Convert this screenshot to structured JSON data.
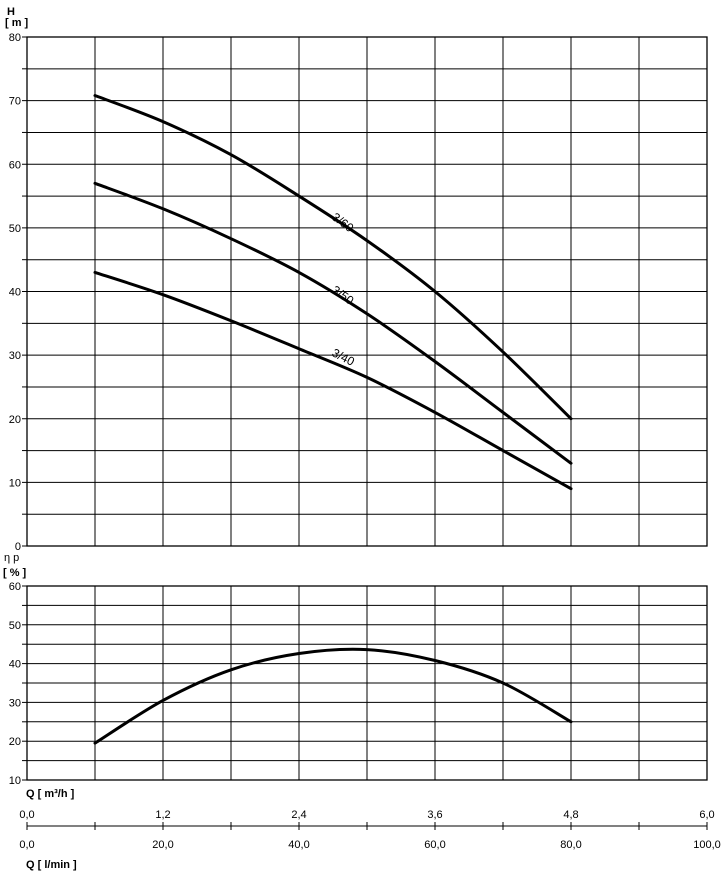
{
  "chart_data": [
    {
      "type": "line",
      "title": "",
      "ylabel": "H",
      "yunit": "[ m ]",
      "xlabel": "",
      "xlim": [
        0,
        6.0
      ],
      "ylim": [
        0,
        80
      ],
      "yticks": [
        "0",
        "10",
        "20",
        "30",
        "40",
        "50",
        "60",
        "70",
        "80"
      ],
      "grid": true,
      "series": [
        {
          "name": "3/60",
          "x": [
            0.6,
            1.2,
            1.8,
            2.4,
            3.0,
            3.6,
            4.2,
            4.8
          ],
          "y": [
            70.8,
            66.7,
            61.5,
            55.0,
            48.0,
            40.0,
            30.5,
            20.0
          ]
        },
        {
          "name": "3/50",
          "x": [
            0.6,
            1.2,
            1.8,
            2.4,
            3.0,
            3.6,
            4.2,
            4.8
          ],
          "y": [
            57.0,
            53.0,
            48.3,
            43.0,
            36.5,
            29.0,
            21.0,
            13.0
          ]
        },
        {
          "name": "3/40",
          "x": [
            0.6,
            1.2,
            1.8,
            2.4,
            3.0,
            3.6,
            4.2,
            4.8
          ],
          "y": [
            43.0,
            39.5,
            35.4,
            31.0,
            26.5,
            21.0,
            15.0,
            9.0
          ]
        }
      ]
    },
    {
      "type": "line",
      "title": "",
      "ylabel": "η p",
      "yunit": "[ % ]",
      "xlim": [
        0,
        6.0
      ],
      "ylim": [
        10,
        60
      ],
      "yticks": [
        "10",
        "20",
        "30",
        "40",
        "50",
        "60"
      ],
      "grid": true,
      "series": [
        {
          "x": [
            0.6,
            1.2,
            1.8,
            2.4,
            3.0,
            3.6,
            4.2,
            4.8
          ],
          "y": [
            19.5,
            30.5,
            38.4,
            42.6,
            43.6,
            40.8,
            35.0,
            25.0
          ]
        }
      ]
    }
  ],
  "axes": {
    "q_m3h_label": "Q [ m³/h ]",
    "q_m3h_ticks": [
      "0,0",
      "1,2",
      "2,4",
      "3,6",
      "4,8",
      "6,0"
    ],
    "q_lmin_label": "Q [ l/min ]",
    "q_lmin_ticks": [
      "0,0",
      "20,0",
      "40,0",
      "60,0",
      "80,0",
      "100,0"
    ]
  }
}
